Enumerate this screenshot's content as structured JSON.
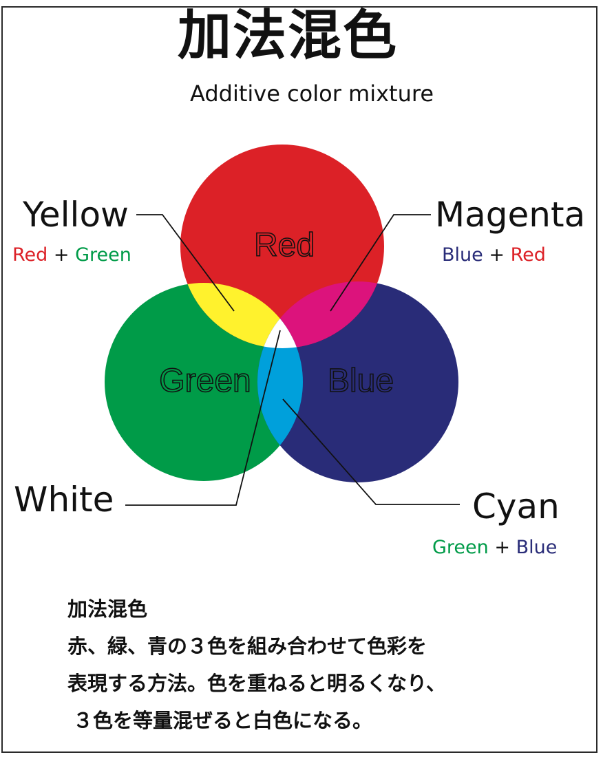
{
  "title": "加法混色",
  "subtitle": "Additive color mixture",
  "circles": {
    "red": {
      "label": "Red",
      "color": "#dc2127"
    },
    "green": {
      "label": "Green",
      "color": "#009b48"
    },
    "blue": {
      "label": "Blue",
      "color": "#292c78"
    }
  },
  "overlap_colors": {
    "yellow": "#fff22d",
    "magenta": "#dc137c",
    "cyan": "#00a0db",
    "white": "#ffffff"
  },
  "callouts": {
    "yellow": {
      "name": "Yellow",
      "part1": "Red",
      "plus": "+",
      "part2": "Green",
      "part1_color": "#dc2127",
      "part2_color": "#009b48"
    },
    "magenta": {
      "name": "Magenta",
      "part1": "Blue",
      "plus": "+",
      "part2": "Red",
      "part1_color": "#292c78",
      "part2_color": "#dc2127"
    },
    "white": {
      "name": "White"
    },
    "cyan": {
      "name": "Cyan",
      "part1": "Green",
      "plus": "+",
      "part2": "Blue",
      "part1_color": "#009b48",
      "part2_color": "#292c78"
    }
  },
  "description": {
    "heading": "加法混色",
    "line1": "赤、緑、青の３色を組み合わせて色彩を",
    "line2": "表現する方法。色を重ねると明るくなり、",
    "line3": "３色を等量混ぜると白色になる。"
  }
}
